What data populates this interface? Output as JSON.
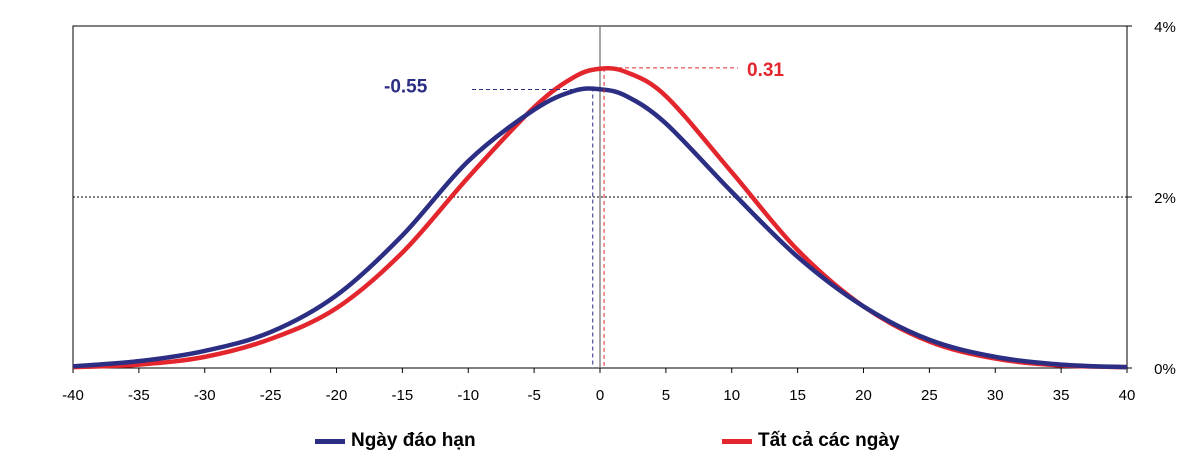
{
  "chart_data": {
    "type": "line",
    "xlim": [
      -40,
      40
    ],
    "ylim": [
      0,
      4
    ],
    "x_ticks": [
      "-40",
      "-35",
      "-30",
      "-25",
      "-20",
      "-15",
      "-10",
      "-5",
      "0",
      "5",
      "10",
      "15",
      "20",
      "25",
      "30",
      "35",
      "40"
    ],
    "y_ticks": [
      "0%",
      "2%",
      "4%"
    ],
    "gridlines_y": [
      2
    ],
    "legend": "bottom",
    "series": [
      {
        "name": "Ngày đáo hạn",
        "color": "#2b2e83",
        "x": [
          -40,
          -35,
          -30,
          -25,
          -20,
          -15,
          -10,
          -5,
          -2,
          0,
          2,
          5,
          10,
          15,
          20,
          25,
          30,
          35,
          40
        ],
        "y": [
          0.02,
          0.08,
          0.2,
          0.42,
          0.85,
          1.55,
          2.42,
          3.02,
          3.24,
          3.26,
          3.18,
          2.86,
          2.06,
          1.3,
          0.72,
          0.33,
          0.13,
          0.04,
          0.01
        ],
        "peak": {
          "x": -0.55,
          "y": 3.28
        },
        "annotation": "-0.55"
      },
      {
        "name": "Tất cả các ngày",
        "color": "#e3262d",
        "x": [
          -40,
          -35,
          -30,
          -25,
          -20,
          -15,
          -10,
          -5,
          -2,
          0,
          2,
          5,
          10,
          15,
          20,
          25,
          30,
          35,
          40
        ],
        "y": [
          0.01,
          0.04,
          0.13,
          0.34,
          0.7,
          1.35,
          2.23,
          3.05,
          3.4,
          3.5,
          3.46,
          3.18,
          2.29,
          1.38,
          0.72,
          0.31,
          0.11,
          0.03,
          0.01
        ],
        "peak": {
          "x": 0.31,
          "y": 3.51
        },
        "annotation": "0.31"
      }
    ]
  }
}
